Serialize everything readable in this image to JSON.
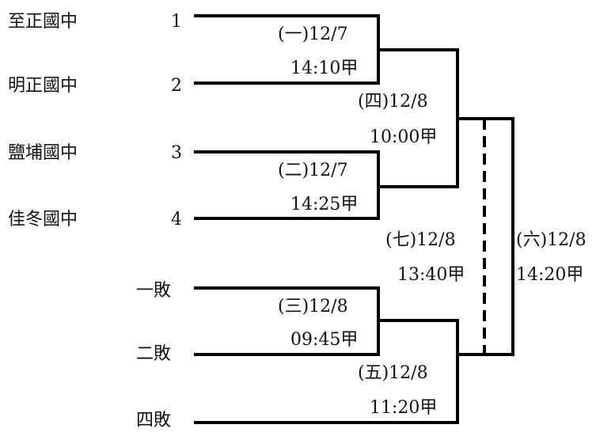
{
  "teams": [
    {
      "name": "至正國中",
      "seed": "1"
    },
    {
      "name": "明正國中",
      "seed": "2"
    },
    {
      "name": "鹽埔國中",
      "seed": "3"
    },
    {
      "name": "佳冬國中",
      "seed": "4"
    }
  ],
  "losers": [
    "一敗",
    "二敗",
    "四敗"
  ],
  "matches": [
    {
      "id": "m1",
      "line1": "(一)12/7",
      "line2": "14:10甲"
    },
    {
      "id": "m2",
      "line1": "(二)12/7",
      "line2": "14:25甲"
    },
    {
      "id": "m3",
      "line1": "(三)12/8",
      "line2": "09:45甲"
    },
    {
      "id": "m4",
      "line1": "(四)12/8",
      "line2": "10:00甲"
    },
    {
      "id": "m5",
      "line1": "(五)12/8",
      "line2": "11:20甲"
    },
    {
      "id": "m6",
      "line1": "(六)12/8",
      "line2": "14:20甲"
    },
    {
      "id": "m7",
      "line1": "(七)12/8",
      "line2": "13:40甲"
    }
  ]
}
